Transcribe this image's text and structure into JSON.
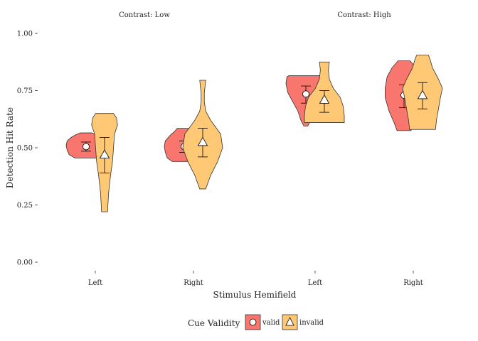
{
  "chart_data": {
    "type": "violin",
    "facets": [
      "Contrast: Low",
      "Contrast: High"
    ],
    "categories": [
      "Left",
      "Right"
    ],
    "xlabel": "Stimulus Hemifield",
    "ylabel": "Detection Hit Rate",
    "ylim": [
      0,
      1
    ],
    "yticks": [
      "0.00",
      "0.25",
      "0.50",
      "0.75",
      "1.00"
    ],
    "grid": false,
    "legend": {
      "title": "Cue Validity",
      "position": "bottom",
      "entries": [
        {
          "name": "valid",
          "color": "#F8766D",
          "marker": "circle"
        },
        {
          "name": "invalid",
          "color": "#FFC874",
          "marker": "triangle"
        }
      ]
    },
    "series": [
      {
        "name": "valid",
        "color": "#F8766D",
        "marker": "circle",
        "groups": [
          {
            "facet": "Contrast: Low",
            "x": "Left",
            "min": 0.455,
            "max": 0.565,
            "mean": 0.505,
            "ci_low": 0.485,
            "ci_high": 0.525,
            "density": [
              [
                0.455,
                0.55
              ],
              [
                0.47,
                0.85
              ],
              [
                0.49,
                0.95
              ],
              [
                0.51,
                1.0
              ],
              [
                0.53,
                0.95
              ],
              [
                0.545,
                0.75
              ],
              [
                0.555,
                0.55
              ],
              [
                0.565,
                0.3
              ]
            ]
          },
          {
            "facet": "Contrast: Low",
            "x": "Right",
            "min": 0.44,
            "max": 0.585,
            "mean": 0.505,
            "ci_low": 0.48,
            "ci_high": 0.53,
            "density": [
              [
                0.44,
                0.6
              ],
              [
                0.455,
                0.85
              ],
              [
                0.48,
                0.95
              ],
              [
                0.505,
                1.0
              ],
              [
                0.53,
                0.95
              ],
              [
                0.555,
                0.7
              ],
              [
                0.57,
                0.5
              ],
              [
                0.585,
                0.35
              ]
            ]
          },
          {
            "facet": "Contrast: High",
            "x": "Left",
            "min": 0.595,
            "max": 0.815,
            "mean": 0.735,
            "ci_low": 0.695,
            "ci_high": 0.77,
            "density": [
              [
                0.595,
                0.1
              ],
              [
                0.62,
                0.25
              ],
              [
                0.66,
                0.4
              ],
              [
                0.7,
                0.65
              ],
              [
                0.74,
                0.9
              ],
              [
                0.78,
                1.0
              ],
              [
                0.81,
                0.95
              ],
              [
                0.815,
                0.85
              ]
            ]
          },
          {
            "facet": "Contrast: High",
            "x": "Right",
            "min": 0.575,
            "max": 0.88,
            "mean": 0.73,
            "ci_low": 0.675,
            "ci_high": 0.775,
            "density": [
              [
                0.575,
                0.35
              ],
              [
                0.61,
                0.5
              ],
              [
                0.66,
                0.75
              ],
              [
                0.72,
                0.95
              ],
              [
                0.76,
                0.95
              ],
              [
                0.81,
                0.85
              ],
              [
                0.85,
                0.6
              ],
              [
                0.88,
                0.3
              ]
            ]
          }
        ]
      },
      {
        "name": "invalid",
        "color": "#FFC874",
        "marker": "triangle",
        "groups": [
          {
            "facet": "Contrast: Low",
            "x": "Left",
            "min": 0.22,
            "max": 0.65,
            "mean": 0.47,
            "ci_low": 0.39,
            "ci_high": 0.545,
            "density": [
              [
                0.22,
                0.15
              ],
              [
                0.3,
                0.2
              ],
              [
                0.38,
                0.3
              ],
              [
                0.44,
                0.4
              ],
              [
                0.5,
                0.45
              ],
              [
                0.56,
                0.5
              ],
              [
                0.6,
                0.65
              ],
              [
                0.63,
                0.6
              ],
              [
                0.65,
                0.45
              ]
            ]
          },
          {
            "facet": "Contrast: Low",
            "x": "Right",
            "min": 0.32,
            "max": 0.795,
            "mean": 0.525,
            "ci_low": 0.46,
            "ci_high": 0.585,
            "density": [
              [
                0.32,
                0.15
              ],
              [
                0.38,
                0.4
              ],
              [
                0.44,
                0.75
              ],
              [
                0.5,
                1.0
              ],
              [
                0.56,
                0.9
              ],
              [
                0.62,
                0.4
              ],
              [
                0.66,
                0.15
              ],
              [
                0.7,
                0.08
              ],
              [
                0.74,
                0.08
              ],
              [
                0.77,
                0.12
              ],
              [
                0.795,
                0.15
              ]
            ]
          },
          {
            "facet": "Contrast: High",
            "x": "Left",
            "min": 0.61,
            "max": 0.875,
            "mean": 0.71,
            "ci_low": 0.655,
            "ci_high": 0.75,
            "density": [
              [
                0.61,
                1.0
              ],
              [
                0.64,
                1.0
              ],
              [
                0.68,
                0.95
              ],
              [
                0.72,
                0.8
              ],
              [
                0.76,
                0.45
              ],
              [
                0.8,
                0.25
              ],
              [
                0.84,
                0.2
              ],
              [
                0.875,
                0.25
              ]
            ]
          },
          {
            "facet": "Contrast: High",
            "x": "Right",
            "min": 0.58,
            "max": 0.905,
            "mean": 0.73,
            "ci_low": 0.67,
            "ci_high": 0.785,
            "density": [
              [
                0.58,
                0.65
              ],
              [
                0.62,
                0.7
              ],
              [
                0.67,
                0.8
              ],
              [
                0.72,
                0.9
              ],
              [
                0.76,
                1.0
              ],
              [
                0.8,
                0.8
              ],
              [
                0.85,
                0.5
              ],
              [
                0.88,
                0.4
              ],
              [
                0.905,
                0.3
              ]
            ]
          }
        ]
      }
    ]
  }
}
